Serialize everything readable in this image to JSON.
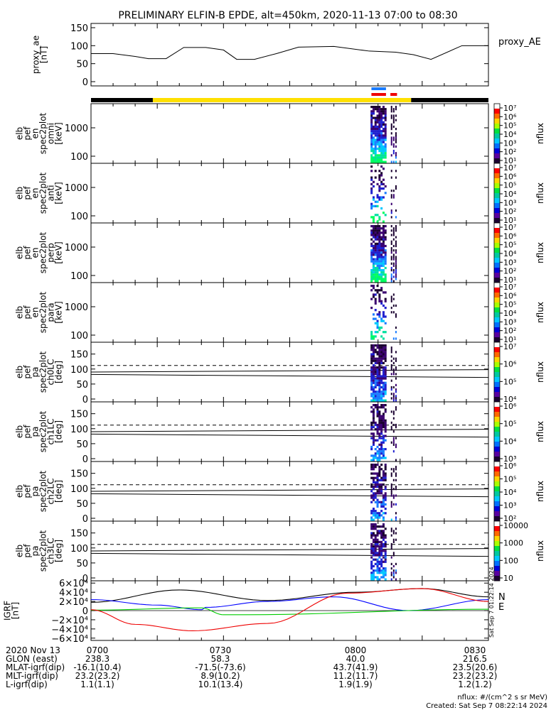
{
  "title": "PRELIMINARY ELFIN-B EPDE, alt=450km, 2020-11-13 07:00 to 08:30",
  "proxy_panel": {
    "ylabel": [
      "proxy_ae",
      "[nT]"
    ],
    "yticks": [
      "150",
      "100",
      "50",
      "0"
    ],
    "legend": "proxy_AE"
  },
  "spectrogram_panels": [
    {
      "ylabel": [
        "elb",
        "pef",
        "en",
        "spec2plot",
        "omni",
        "[keV]"
      ],
      "yticks": [
        "1000",
        "100"
      ]
    },
    {
      "ylabel": [
        "elb",
        "pef",
        "en",
        "spec2plot",
        "anti",
        "[keV]"
      ],
      "yticks": [
        "1000",
        "100"
      ]
    },
    {
      "ylabel": [
        "elb",
        "pef",
        "en",
        "spec2plot",
        "perp",
        "[keV]"
      ],
      "yticks": [
        "1000",
        "100"
      ]
    },
    {
      "ylabel": [
        "elb",
        "pef",
        "en",
        "spec2plot",
        "para",
        "[keV]"
      ],
      "yticks": [
        "1000",
        "100"
      ]
    },
    {
      "ylabel": [
        "elb",
        "pef",
        "pa",
        "spec2plot",
        "ch0LC",
        "[deg]"
      ],
      "yticks": [
        "150",
        "100",
        "50",
        "0"
      ]
    },
    {
      "ylabel": [
        "elb",
        "pef",
        "pa",
        "spec2plot",
        "ch1LC",
        "[deg]"
      ],
      "yticks": [
        "150",
        "100",
        "50",
        "0"
      ]
    },
    {
      "ylabel": [
        "elb",
        "pef",
        "pa",
        "spec2plot",
        "ch2LC",
        "[deg]"
      ],
      "yticks": [
        "150",
        "100",
        "50",
        "0"
      ]
    },
    {
      "ylabel": [
        "elb",
        "pef",
        "pa",
        "spec2plot",
        "ch3LC",
        "[deg]"
      ],
      "yticks": [
        "150",
        "100",
        "50",
        "0"
      ]
    }
  ],
  "colorbars": [
    {
      "label": "nflux",
      "ticks": [
        "10⁷",
        "10⁶",
        "10⁵",
        "10⁴",
        "10³",
        "10²",
        "10¹"
      ]
    },
    {
      "label": "nflux",
      "ticks": [
        "10⁷",
        "10⁶",
        "10⁵",
        "10⁴",
        "10³",
        "10²",
        "10¹"
      ]
    },
    {
      "label": "nflux",
      "ticks": [
        "10⁷",
        "10⁶",
        "10⁵",
        "10⁴",
        "10³",
        "10²",
        "10¹"
      ]
    },
    {
      "label": "nflux",
      "ticks": [
        "10⁷",
        "10⁶",
        "10⁵",
        "10⁴",
        "10³",
        "10²",
        "10¹"
      ]
    },
    {
      "label": "nflux",
      "ticks": [
        "10⁷",
        "10⁶",
        "10⁵",
        "10⁴"
      ]
    },
    {
      "label": "nflux",
      "ticks": [
        "10⁶",
        "10⁵",
        "10⁴",
        "10³"
      ]
    },
    {
      "label": "nflux",
      "ticks": [
        "10⁶",
        "10⁵",
        "10⁴",
        "10³",
        "10²"
      ]
    },
    {
      "label": "nflux",
      "ticks": [
        "10000",
        "1000",
        "100",
        "10"
      ]
    }
  ],
  "field_panel": {
    "ylabel": [
      "IGRF",
      "[nT]"
    ],
    "yticks": [
      "6×10⁴",
      "4×10⁴",
      "2×10⁴",
      "0",
      "−2×10⁴",
      "−4×10⁴",
      "−6×10⁴"
    ],
    "legend": [
      {
        "name": "N",
        "color": "#000000"
      },
      {
        "name": "E",
        "color": "#00cc00"
      }
    ],
    "stamp": "Sat Sep  7 01:22:14 2024"
  },
  "time_axis": {
    "row_labels": [
      "2020 Nov 13",
      "GLON (east)",
      "MLAT-igrf(dip)",
      "MLT-igrf(dip)",
      "L-igrf(dip)"
    ],
    "columns": [
      {
        "time": "0700",
        "glon": "238.3",
        "mlat": "-16.1(10.4)",
        "mlt": "23.2(23.2)",
        "l": "1.1(1.1)"
      },
      {
        "time": "0730",
        "glon": "58.3",
        "mlat": "-71.5(-73.6)",
        "mlt": "8.9(10.2)",
        "l": "10.1(13.4)"
      },
      {
        "time": "0800",
        "glon": "40.0",
        "mlat": "43.7(41.9)",
        "mlt": "11.2(11.7)",
        "l": "1.9(1.9)"
      },
      {
        "time": "0830",
        "glon": "216.5",
        "mlat": "23.5(20.6)",
        "mlt": "23.2(23.2)",
        "l": "1.2(1.2)"
      }
    ]
  },
  "footer": {
    "units": "nflux: #/(cm^2 s sr MeV)",
    "created": "Created: Sat Sep  7 08:22:14 2024"
  },
  "colors": {
    "colorbar": [
      "#ffffff",
      "#ff0000",
      "#ff6a00",
      "#ffd400",
      "#a8ff00",
      "#00e040",
      "#00c8a0",
      "#00c8ff",
      "#0070ff",
      "#0000d8",
      "#5a00a0",
      "#1a0030"
    ],
    "spectrogram": [
      "#1a0030",
      "#3a0070",
      "#1f1fcf",
      "#1a7cff",
      "#00c8ff",
      "#00e0a0",
      "#00ff60"
    ],
    "orbit_night": "#000000",
    "orbit_day": "#ffe000",
    "marker_blue": "#1a7cff",
    "marker_red": "#ee0000"
  },
  "chart_data": {
    "type": "line",
    "time_range": [
      "2020-11-13 07:00",
      "2020-11-13 08:30"
    ],
    "proxy_ae": {
      "unit": "nT",
      "ylim": [
        0,
        150
      ],
      "x_min": [
        0,
        5,
        10,
        13,
        17,
        21,
        26,
        30,
        33,
        37,
        42,
        47,
        55,
        63,
        69,
        73,
        77,
        84,
        90
      ],
      "y": [
        78,
        78,
        70,
        64,
        64,
        95,
        95,
        88,
        62,
        62,
        78,
        96,
        98,
        85,
        82,
        75,
        62,
        100,
        100
      ]
    },
    "igrf": {
      "unit": "nT",
      "ylim": [
        -65000,
        65000
      ],
      "series": [
        {
          "color": "#000000",
          "x_min": [
            0,
            20,
            40,
            60,
            75,
            90
          ],
          "y": [
            18000,
            45000,
            22000,
            40000,
            48000,
            30000
          ]
        },
        {
          "color": "#0000ff",
          "x_min": [
            0,
            15,
            25,
            26,
            40,
            55,
            72,
            90
          ],
          "y": [
            24000,
            12000,
            2000,
            7000,
            20000,
            30000,
            0,
            24000
          ]
        },
        {
          "color": "#00cc00",
          "x_min": [
            0,
            25,
            30,
            35,
            90
          ],
          "y": [
            1000,
            6000,
            -9000,
            -9000,
            3000
          ]
        },
        {
          "color": "#ee0000",
          "x_min": [
            0,
            10,
            23,
            40,
            58,
            75,
            90
          ],
          "y": [
            2000,
            -30000,
            -44000,
            -28000,
            38000,
            48000,
            20000
          ]
        }
      ]
    },
    "orbit_bar": [
      {
        "state": "night",
        "from_min": 0,
        "to_min": 14
      },
      {
        "state": "day",
        "from_min": 14,
        "to_min": 72.5
      },
      {
        "state": "night",
        "from_min": 72.5,
        "to_min": 90
      }
    ],
    "science_zones": [
      {
        "color": "#1a7cff",
        "from_min": 63.5,
        "to_min": 66.8
      },
      {
        "color": "#ee0000",
        "from_min": 63.5,
        "to_min": 66.8
      },
      {
        "color": "#ee0000",
        "from_min": 67.8,
        "to_min": 69.3
      }
    ],
    "pitch_angle_reference": {
      "dashed_deg": 112,
      "solid_deg": [
        98,
        72
      ]
    }
  }
}
